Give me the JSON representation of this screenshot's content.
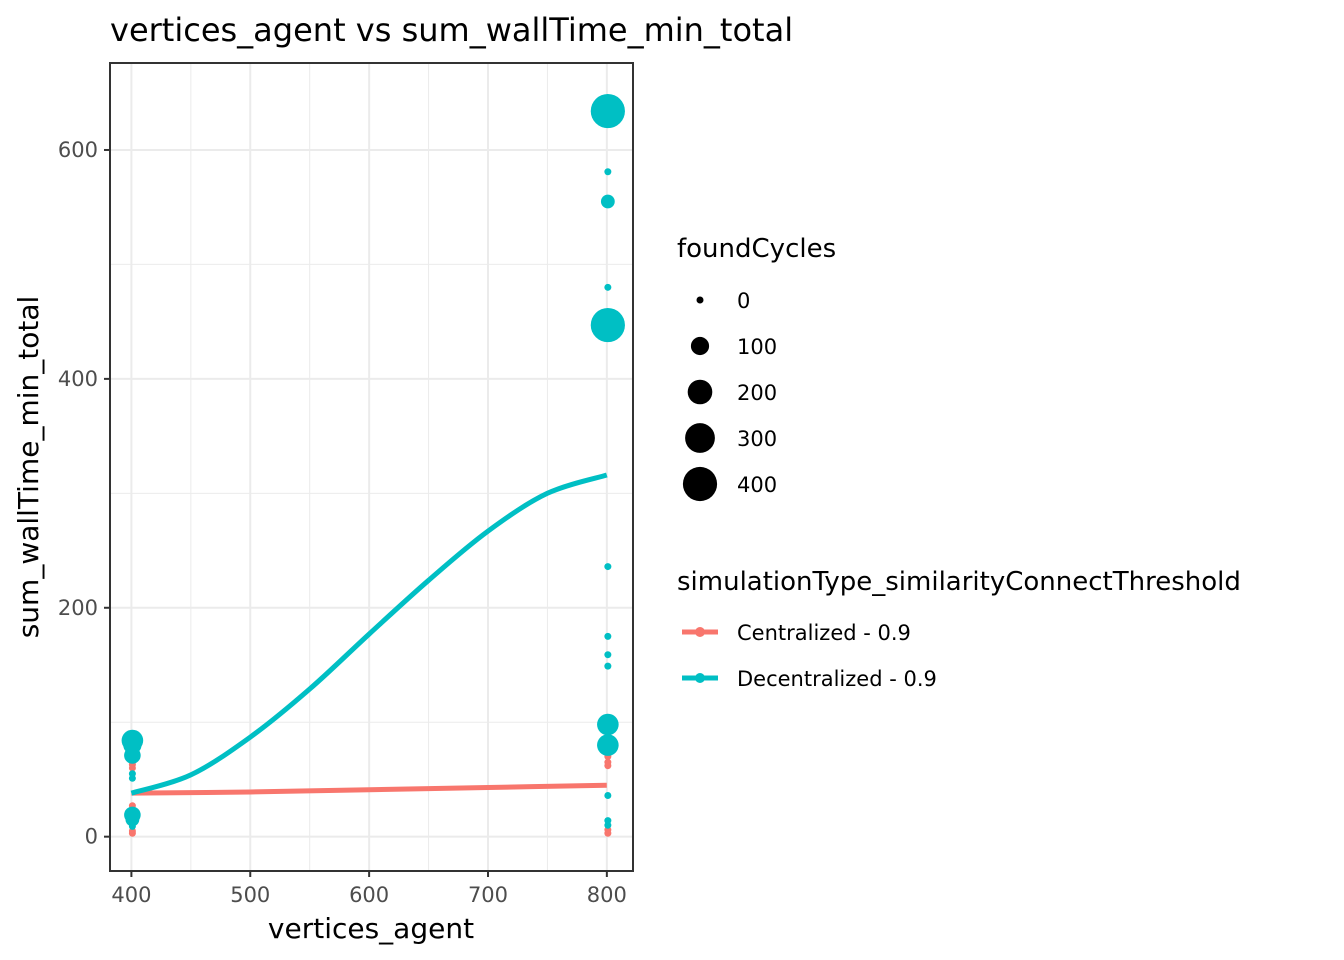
{
  "chart_data": {
    "type": "scatter",
    "title": "vertices_agent  vs  sum_wallTime_min_total",
    "xlabel": "vertices_agent",
    "ylabel": "sum_wallTime_min_total",
    "xlim": [
      382,
      822
    ],
    "ylim": [
      -30,
      676
    ],
    "x_ticks": [
      400,
      500,
      600,
      700,
      800
    ],
    "y_ticks": [
      0,
      200,
      400,
      600
    ],
    "grid": true,
    "size_legend": {
      "title": "foundCycles",
      "entries": [
        {
          "label": "0",
          "value": 0
        },
        {
          "label": "100",
          "value": 100
        },
        {
          "label": "200",
          "value": 200
        },
        {
          "label": "300",
          "value": 300
        },
        {
          "label": "400",
          "value": 400
        }
      ]
    },
    "color_legend": {
      "title": "simulationType_similarityConnectThreshold",
      "placement": "right"
    },
    "series": [
      {
        "name": "Centralized - 0.9",
        "color": "#F8766D",
        "points": [
          {
            "x": 400,
            "y": 63,
            "size": 0
          },
          {
            "x": 400,
            "y": 60,
            "size": 0
          },
          {
            "x": 400,
            "y": 27,
            "size": 0
          },
          {
            "x": 400,
            "y": 24,
            "size": 0
          },
          {
            "x": 400,
            "y": 20,
            "size": 0
          },
          {
            "x": 400,
            "y": 5,
            "size": 0
          },
          {
            "x": 400,
            "y": 3,
            "size": 0
          },
          {
            "x": 800,
            "y": 88,
            "size": 0
          },
          {
            "x": 800,
            "y": 75,
            "size": 0
          },
          {
            "x": 800,
            "y": 70,
            "size": 0
          },
          {
            "x": 800,
            "y": 65,
            "size": 0
          },
          {
            "x": 800,
            "y": 62,
            "size": 0
          },
          {
            "x": 800,
            "y": 6,
            "size": 0
          },
          {
            "x": 800,
            "y": 3,
            "size": 0
          }
        ],
        "trend": [
          {
            "x": 400,
            "y": 38
          },
          {
            "x": 500,
            "y": 39
          },
          {
            "x": 600,
            "y": 41
          },
          {
            "x": 700,
            "y": 43
          },
          {
            "x": 800,
            "y": 45
          }
        ]
      },
      {
        "name": "Decentralized - 0.9",
        "color": "#00BFC4",
        "points": [
          {
            "x": 800,
            "y": 634,
            "size": 400
          },
          {
            "x": 800,
            "y": 581,
            "size": 0
          },
          {
            "x": 800,
            "y": 555,
            "size": 50
          },
          {
            "x": 800,
            "y": 480,
            "size": 0
          },
          {
            "x": 800,
            "y": 447,
            "size": 400
          },
          {
            "x": 800,
            "y": 236,
            "size": 0
          },
          {
            "x": 800,
            "y": 175,
            "size": 0
          },
          {
            "x": 800,
            "y": 159,
            "size": 0
          },
          {
            "x": 800,
            "y": 149,
            "size": 0
          },
          {
            "x": 800,
            "y": 98,
            "size": 150
          },
          {
            "x": 800,
            "y": 80,
            "size": 150
          },
          {
            "x": 800,
            "y": 36,
            "size": 0
          },
          {
            "x": 800,
            "y": 14,
            "size": 0
          },
          {
            "x": 800,
            "y": 10,
            "size": 0
          },
          {
            "x": 400,
            "y": 84,
            "size": 150
          },
          {
            "x": 400,
            "y": 80,
            "size": 100
          },
          {
            "x": 400,
            "y": 71,
            "size": 80
          },
          {
            "x": 400,
            "y": 55,
            "size": 0
          },
          {
            "x": 400,
            "y": 51,
            "size": 0
          },
          {
            "x": 400,
            "y": 19,
            "size": 80
          },
          {
            "x": 400,
            "y": 15,
            "size": 50
          },
          {
            "x": 400,
            "y": 9,
            "size": 0
          }
        ],
        "trend": [
          {
            "x": 400,
            "y": 38
          },
          {
            "x": 450,
            "y": 54
          },
          {
            "x": 500,
            "y": 87
          },
          {
            "x": 550,
            "y": 129
          },
          {
            "x": 600,
            "y": 177
          },
          {
            "x": 650,
            "y": 224
          },
          {
            "x": 700,
            "y": 267
          },
          {
            "x": 750,
            "y": 300
          },
          {
            "x": 800,
            "y": 316
          }
        ]
      }
    ]
  }
}
